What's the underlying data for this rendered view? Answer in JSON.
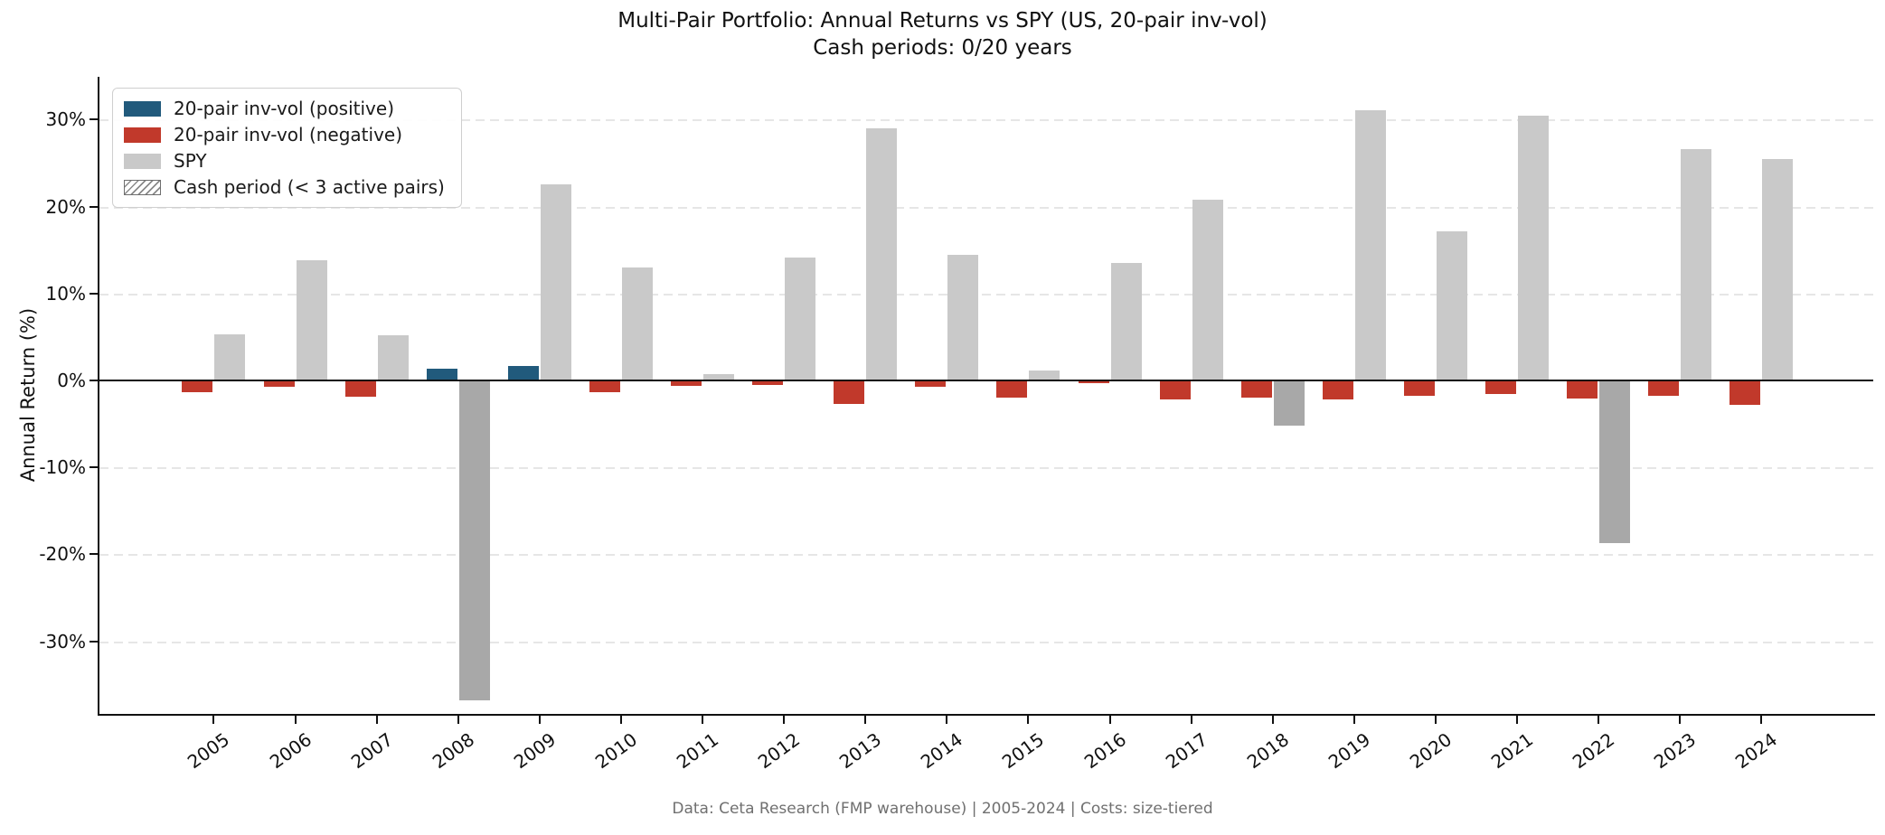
{
  "chart_data": {
    "type": "bar",
    "title": "Multi-Pair Portfolio: Annual Returns vs SPY (US, 20-pair inv-vol)",
    "subtitle": "Cash periods: 0/20 years",
    "ylabel": "Annual Return (%)",
    "footer": "Data: Ceta Research (FMP warehouse) | 2005-2024 | Costs: size-tiered",
    "categories": [
      "2005",
      "2006",
      "2007",
      "2008",
      "2009",
      "2010",
      "2011",
      "2012",
      "2013",
      "2014",
      "2015",
      "2016",
      "2017",
      "2018",
      "2019",
      "2020",
      "2021",
      "2022",
      "2023",
      "2024"
    ],
    "series": [
      {
        "name": "20-pair inv-vol",
        "values": [
          -1.3,
          -0.7,
          -1.9,
          1.4,
          1.7,
          -1.3,
          -0.6,
          -0.5,
          -2.7,
          -0.7,
          -2.0,
          -0.3,
          -2.2,
          -2.0,
          -2.2,
          -1.8,
          -1.6,
          -2.1,
          -1.8,
          -2.8
        ]
      },
      {
        "name": "SPY",
        "values": [
          5.3,
          13.8,
          5.2,
          -36.8,
          22.6,
          13.0,
          0.7,
          14.1,
          29.0,
          14.5,
          1.1,
          13.5,
          20.8,
          -5.2,
          31.1,
          17.1,
          30.5,
          -18.7,
          26.6,
          25.5
        ]
      }
    ],
    "legend": [
      {
        "label": "20-pair inv-vol (positive)",
        "swatch": "solid",
        "color": "#215a7c"
      },
      {
        "label": "20-pair inv-vol (negative)",
        "swatch": "solid",
        "color": "#c1392b"
      },
      {
        "label": "SPY",
        "swatch": "solid",
        "color": "#c9c9c9"
      },
      {
        "label": "Cash period (< 3 active pairs)",
        "swatch": "hatch",
        "color": "#8a8a8a"
      }
    ],
    "legend_position": "upper-left",
    "yticks": [
      30,
      20,
      10,
      0,
      -10,
      -20,
      -30
    ],
    "ytick_labels": [
      "30%",
      "20%",
      "10%",
      "0%",
      "-10%",
      "-20%",
      "-30%"
    ],
    "ylim": [
      -38.4,
      34.9
    ],
    "grid": "horizontal-dashed",
    "colors": {
      "strategy_positive": "#215a7c",
      "strategy_negative": "#c1392b",
      "spy_positive": "#c9c9c9",
      "spy_negative": "#a8a8a8",
      "zero_line": "#111111",
      "gridline": "#e6e6e6",
      "footer_text": "#707070"
    }
  }
}
